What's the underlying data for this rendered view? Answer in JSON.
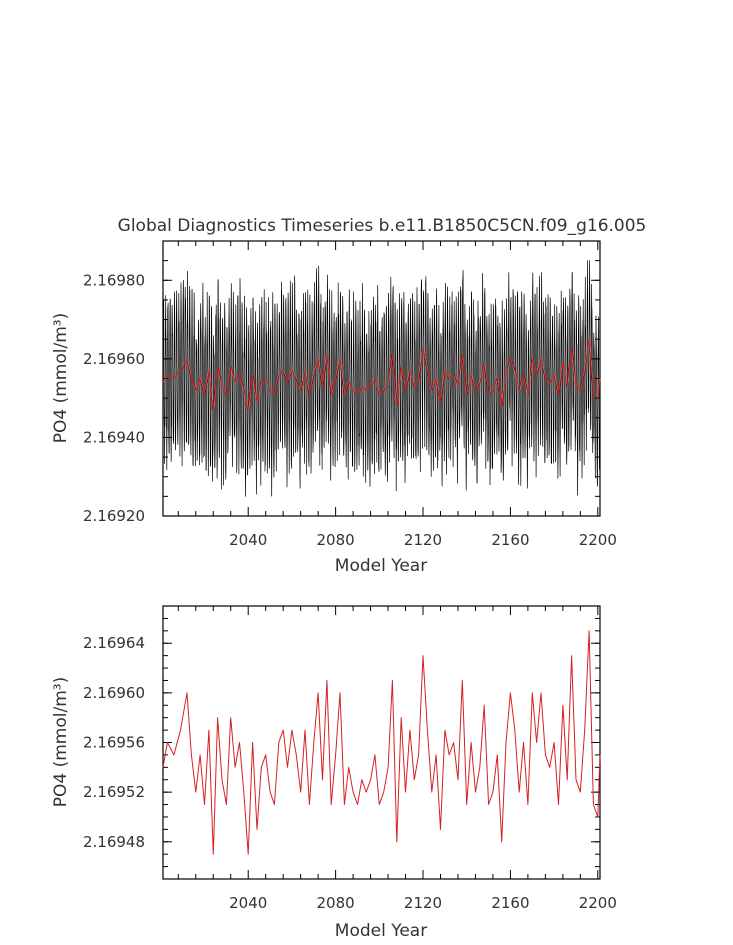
{
  "title": "Global Diagnostics Timeseries b.e11.B1850C5CN.f09_g16.005",
  "colors": {
    "raw": "#000000",
    "smoothed": "#d62020",
    "text": "#333333"
  },
  "chart_data": [
    {
      "type": "line",
      "xlabel": "Model Year",
      "ylabel": "PO4 (mmol/m³)",
      "xlim": [
        2001,
        2201
      ],
      "ylim": [
        2.1692,
        2.1699
      ],
      "xticks": [
        2040,
        2080,
        2120,
        2160,
        2200
      ],
      "yticks": [
        2.1692,
        2.1694,
        2.1696,
        2.1698
      ],
      "ytick_labels": [
        "2.16920",
        "2.16940",
        "2.16960",
        "2.16980"
      ],
      "grid": false,
      "series": [
        {
          "style": "black high-frequency (monthly) series oscillating roughly between 2.16930 and 2.16978",
          "envelope_min": 2.16922,
          "envelope_max": 2.16985
        },
        {
          "style": "red annual mean series",
          "ref": "chart_data.1.series.0"
        }
      ]
    },
    {
      "type": "line",
      "xlabel": "Model Year",
      "ylabel": "PO4 (mmol/m³)",
      "xlim": [
        2001,
        2201
      ],
      "ylim": [
        2.16945,
        2.16967
      ],
      "xticks": [
        2040,
        2080,
        2120,
        2160,
        2200
      ],
      "yticks": [
        2.16948,
        2.16952,
        2.16956,
        2.1696,
        2.16964
      ],
      "ytick_labels": [
        "2.16948",
        "2.16952",
        "2.16956",
        "2.16960",
        "2.16964"
      ],
      "grid": false,
      "series": [
        {
          "style": "red annual mean",
          "x": [
            2001,
            2003,
            2006,
            2009,
            2012,
            2014,
            2016,
            2018,
            2020,
            2022,
            2024,
            2026,
            2028,
            2030,
            2032,
            2034,
            2036,
            2038,
            2040,
            2042,
            2044,
            2046,
            2048,
            2050,
            2052,
            2054,
            2056,
            2058,
            2060,
            2062,
            2064,
            2066,
            2068,
            2070,
            2072,
            2074,
            2076,
            2078,
            2080,
            2082,
            2084,
            2086,
            2088,
            2090,
            2092,
            2094,
            2096,
            2098,
            2100,
            2102,
            2104,
            2106,
            2108,
            2110,
            2112,
            2114,
            2116,
            2118,
            2120,
            2122,
            2124,
            2126,
            2128,
            2130,
            2132,
            2134,
            2136,
            2138,
            2140,
            2142,
            2144,
            2146,
            2148,
            2150,
            2152,
            2154,
            2156,
            2158,
            2160,
            2162,
            2164,
            2166,
            2168,
            2170,
            2172,
            2174,
            2176,
            2178,
            2180,
            2182,
            2184,
            2186,
            2188,
            2190,
            2192,
            2194,
            2196,
            2198,
            2200,
            2201
          ],
          "y": [
            2.16954,
            2.16956,
            2.16955,
            2.16957,
            2.1696,
            2.16955,
            2.16952,
            2.16955,
            2.16951,
            2.16957,
            2.16947,
            2.16958,
            2.16953,
            2.16951,
            2.16958,
            2.16954,
            2.16956,
            2.16952,
            2.16947,
            2.16956,
            2.16949,
            2.16954,
            2.16955,
            2.16952,
            2.16951,
            2.16956,
            2.16957,
            2.16954,
            2.16957,
            2.16955,
            2.16952,
            2.16957,
            2.16951,
            2.16956,
            2.1696,
            2.16953,
            2.16961,
            2.16951,
            2.16955,
            2.1696,
            2.16951,
            2.16954,
            2.16952,
            2.16951,
            2.16953,
            2.16952,
            2.16953,
            2.16955,
            2.16951,
            2.16952,
            2.16954,
            2.16961,
            2.16948,
            2.16958,
            2.16952,
            2.16957,
            2.16953,
            2.16955,
            2.16963,
            2.16957,
            2.16952,
            2.16955,
            2.16949,
            2.16957,
            2.16955,
            2.16956,
            2.16953,
            2.16961,
            2.16951,
            2.16956,
            2.16952,
            2.16954,
            2.16959,
            2.16951,
            2.16952,
            2.16955,
            2.16948,
            2.16956,
            2.1696,
            2.16957,
            2.16952,
            2.16956,
            2.16951,
            2.1696,
            2.16956,
            2.1696,
            2.16955,
            2.16954,
            2.16956,
            2.16951,
            2.16959,
            2.16953,
            2.16963,
            2.16953,
            2.16952,
            2.16957,
            2.16965,
            2.16951,
            2.1695,
            2.16955
          ]
        }
      ]
    }
  ]
}
